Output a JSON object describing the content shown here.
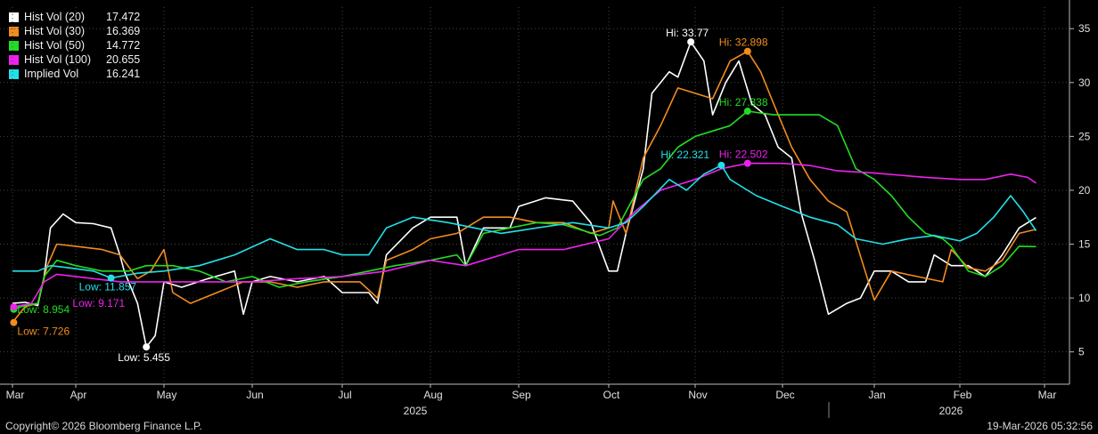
{
  "chart_data": {
    "type": "line",
    "y_ticks": [
      5,
      10,
      15,
      20,
      25,
      30,
      35
    ],
    "ylim": [
      2,
      37
    ],
    "x_month_labels": [
      "Mar",
      "Apr",
      "May",
      "Jun",
      "Jul",
      "Aug",
      "Sep",
      "Oct",
      "Nov",
      "Dec",
      "Jan",
      "Feb",
      "Mar"
    ],
    "year_labels": [
      "2025",
      "2026"
    ],
    "grid": true,
    "series": [
      {
        "name": "Hist Vol (20)",
        "color": "#ffffff",
        "last": "17.472",
        "hi": {
          "label": "Hi: 33.77",
          "value": 33.77,
          "x": 7.95
        },
        "low": {
          "label": "Low: 5.455",
          "value": 5.455,
          "x": 1.8
        },
        "points": [
          [
            0,
            9.5
          ],
          [
            0.2,
            9.6
          ],
          [
            0.4,
            9.3
          ],
          [
            0.5,
            12
          ],
          [
            0.6,
            16.5
          ],
          [
            0.8,
            17.8
          ],
          [
            1.0,
            17.0
          ],
          [
            1.2,
            16.9
          ],
          [
            1.4,
            16.5
          ],
          [
            1.5,
            14
          ],
          [
            1.55,
            12.5
          ],
          [
            1.7,
            9.5
          ],
          [
            1.8,
            5.455
          ],
          [
            1.9,
            6.5
          ],
          [
            2.0,
            11.5
          ],
          [
            2.2,
            11.0
          ],
          [
            2.5,
            11.8
          ],
          [
            2.8,
            12.5
          ],
          [
            2.9,
            8.5
          ],
          [
            3.0,
            11.5
          ],
          [
            3.2,
            12
          ],
          [
            3.5,
            11.5
          ],
          [
            3.8,
            12
          ],
          [
            4.0,
            10.5
          ],
          [
            4.3,
            10.5
          ],
          [
            4.4,
            9.5
          ],
          [
            4.5,
            14
          ],
          [
            4.8,
            16.5
          ],
          [
            5.0,
            17.5
          ],
          [
            5.3,
            17.5
          ],
          [
            5.4,
            13
          ],
          [
            5.6,
            16.5
          ],
          [
            5.9,
            16.5
          ],
          [
            6.0,
            18.5
          ],
          [
            6.3,
            19.3
          ],
          [
            6.6,
            19
          ],
          [
            6.8,
            17
          ],
          [
            7.0,
            12.5
          ],
          [
            7.1,
            12.5
          ],
          [
            7.2,
            16
          ],
          [
            7.4,
            22
          ],
          [
            7.5,
            29
          ],
          [
            7.7,
            31
          ],
          [
            7.8,
            30.5
          ],
          [
            7.95,
            33.77
          ],
          [
            8.1,
            32
          ],
          [
            8.2,
            27
          ],
          [
            8.35,
            30
          ],
          [
            8.5,
            32
          ],
          [
            8.65,
            28
          ],
          [
            8.8,
            27
          ],
          [
            8.95,
            24
          ],
          [
            9.1,
            23
          ],
          [
            9.2,
            18
          ],
          [
            9.35,
            13.5
          ],
          [
            9.5,
            8.5
          ],
          [
            9.7,
            9.5
          ],
          [
            9.85,
            10
          ],
          [
            10.0,
            12.5
          ],
          [
            10.2,
            12.5
          ],
          [
            10.4,
            11.5
          ],
          [
            10.6,
            11.5
          ],
          [
            10.7,
            14
          ],
          [
            10.9,
            13
          ],
          [
            11.1,
            13
          ],
          [
            11.3,
            12
          ],
          [
            11.5,
            14
          ],
          [
            11.7,
            16.5
          ],
          [
            11.9,
            17.47
          ]
        ]
      },
      {
        "name": "Hist Vol (30)",
        "color": "#f28c1e",
        "last": "16.369",
        "hi": {
          "label": "Hi: 32.898",
          "value": 32.898,
          "x": 8.6
        },
        "low": {
          "label": "Low: 7.726",
          "value": 7.726,
          "x": 0.02
        },
        "points": [
          [
            0,
            7.726
          ],
          [
            0.2,
            9.2
          ],
          [
            0.4,
            9.5
          ],
          [
            0.55,
            13
          ],
          [
            0.7,
            15
          ],
          [
            1.0,
            14.8
          ],
          [
            1.3,
            14.5
          ],
          [
            1.5,
            14
          ],
          [
            1.7,
            11.8
          ],
          [
            1.85,
            12.5
          ],
          [
            2.0,
            14.5
          ],
          [
            2.1,
            10.5
          ],
          [
            2.3,
            9.5
          ],
          [
            2.6,
            10.5
          ],
          [
            2.9,
            11.5
          ],
          [
            3.2,
            11.5
          ],
          [
            3.5,
            11
          ],
          [
            3.8,
            11.5
          ],
          [
            4.2,
            11.5
          ],
          [
            4.4,
            10
          ],
          [
            4.5,
            13.5
          ],
          [
            4.8,
            14.5
          ],
          [
            5.0,
            15.5
          ],
          [
            5.3,
            16
          ],
          [
            5.6,
            17.5
          ],
          [
            5.9,
            17.5
          ],
          [
            6.2,
            17
          ],
          [
            6.5,
            17
          ],
          [
            6.8,
            16
          ],
          [
            7.0,
            16.5
          ],
          [
            7.05,
            19
          ],
          [
            7.2,
            16
          ],
          [
            7.4,
            23
          ],
          [
            7.6,
            26
          ],
          [
            7.8,
            29.5
          ],
          [
            8.0,
            29
          ],
          [
            8.2,
            28.5
          ],
          [
            8.4,
            32
          ],
          [
            8.6,
            32.898
          ],
          [
            8.75,
            31
          ],
          [
            8.9,
            28
          ],
          [
            9.1,
            24
          ],
          [
            9.3,
            21
          ],
          [
            9.5,
            19
          ],
          [
            9.7,
            18
          ],
          [
            9.9,
            12.5
          ],
          [
            10.0,
            9.8
          ],
          [
            10.2,
            12.5
          ],
          [
            10.5,
            12
          ],
          [
            10.8,
            11.5
          ],
          [
            10.9,
            14.5
          ],
          [
            11.1,
            12.8
          ],
          [
            11.3,
            12.5
          ],
          [
            11.5,
            13.5
          ],
          [
            11.7,
            16
          ],
          [
            11.9,
            16.37
          ]
        ]
      },
      {
        "name": "Hist Vol (50)",
        "color": "#22dd22",
        "last": "14.772",
        "hi": {
          "label": "Hi: 27.338",
          "value": 27.338,
          "x": 8.6
        },
        "low": {
          "label": "Low: 8.954",
          "value": 8.954,
          "x": 0.02
        },
        "points": [
          [
            0,
            8.954
          ],
          [
            0.2,
            9.3
          ],
          [
            0.4,
            9.5
          ],
          [
            0.5,
            12
          ],
          [
            0.7,
            13.5
          ],
          [
            1.0,
            13
          ],
          [
            1.3,
            12.5
          ],
          [
            1.6,
            12.5
          ],
          [
            1.8,
            13
          ],
          [
            2.1,
            13
          ],
          [
            2.4,
            12.5
          ],
          [
            2.7,
            11.5
          ],
          [
            3.0,
            12
          ],
          [
            3.3,
            11
          ],
          [
            3.6,
            11.5
          ],
          [
            4.0,
            12
          ],
          [
            4.3,
            12.5
          ],
          [
            4.6,
            13
          ],
          [
            5.0,
            13.5
          ],
          [
            5.3,
            14
          ],
          [
            5.4,
            13
          ],
          [
            5.6,
            16
          ],
          [
            5.9,
            16.5
          ],
          [
            6.2,
            17
          ],
          [
            6.5,
            16.8
          ],
          [
            6.9,
            15.8
          ],
          [
            7.1,
            16.5
          ],
          [
            7.4,
            21
          ],
          [
            7.6,
            22
          ],
          [
            7.8,
            24
          ],
          [
            8.0,
            25
          ],
          [
            8.2,
            25.5
          ],
          [
            8.4,
            26
          ],
          [
            8.6,
            27.338
          ],
          [
            8.9,
            27
          ],
          [
            9.2,
            27
          ],
          [
            9.4,
            27
          ],
          [
            9.6,
            26
          ],
          [
            9.8,
            22
          ],
          [
            10.0,
            21
          ],
          [
            10.2,
            19.5
          ],
          [
            10.4,
            17.5
          ],
          [
            10.6,
            16
          ],
          [
            10.8,
            15.5
          ],
          [
            10.9,
            14.8
          ],
          [
            11.1,
            12.5
          ],
          [
            11.3,
            12
          ],
          [
            11.5,
            13
          ],
          [
            11.7,
            14.8
          ],
          [
            11.9,
            14.77
          ]
        ]
      },
      {
        "name": "Hist Vol (100)",
        "color": "#ee22ee",
        "last": "20.655",
        "hi": {
          "label": "Hi: 22.502",
          "value": 22.502,
          "x": 8.6
        },
        "low": {
          "label": "Low: 9.171",
          "value": 9.171,
          "x": 0.02
        },
        "points": [
          [
            0,
            9.171
          ],
          [
            0.3,
            9.5
          ],
          [
            0.5,
            11.5
          ],
          [
            0.7,
            12.2
          ],
          [
            1.0,
            12.0
          ],
          [
            1.5,
            11.5
          ],
          [
            2.0,
            11.5
          ],
          [
            2.5,
            11.5
          ],
          [
            3.0,
            11.5
          ],
          [
            3.5,
            11.8
          ],
          [
            4.0,
            12
          ],
          [
            4.5,
            12.5
          ],
          [
            5.0,
            13.5
          ],
          [
            5.4,
            13.0
          ],
          [
            5.6,
            13.5
          ],
          [
            6.0,
            14.5
          ],
          [
            6.5,
            14.5
          ],
          [
            7.0,
            15.5
          ],
          [
            7.3,
            18
          ],
          [
            7.6,
            20
          ],
          [
            8.0,
            21
          ],
          [
            8.3,
            22
          ],
          [
            8.6,
            22.502
          ],
          [
            9.0,
            22.5
          ],
          [
            9.3,
            22.3
          ],
          [
            9.6,
            21.8
          ],
          [
            10.0,
            21.6
          ],
          [
            10.3,
            21.4
          ],
          [
            10.6,
            21.2
          ],
          [
            11.0,
            21
          ],
          [
            11.3,
            21
          ],
          [
            11.6,
            21.5
          ],
          [
            11.8,
            21.2
          ],
          [
            11.9,
            20.66
          ]
        ]
      },
      {
        "name": "Implied Vol",
        "color": "#22e0e8",
        "last": "16.241",
        "hi": {
          "label": "Hi: 22.321",
          "value": 22.321,
          "x": 8.3
        },
        "low": {
          "label": "Low: 11.857",
          "value": 11.857,
          "x": 1.4
        },
        "points": [
          [
            0,
            12.5
          ],
          [
            0.4,
            12.5
          ],
          [
            0.6,
            13
          ],
          [
            0.9,
            12.8
          ],
          [
            1.2,
            12.5
          ],
          [
            1.4,
            11.857
          ],
          [
            1.7,
            12.3
          ],
          [
            2.0,
            12.5
          ],
          [
            2.4,
            13
          ],
          [
            2.8,
            14
          ],
          [
            3.2,
            15.5
          ],
          [
            3.5,
            14.5
          ],
          [
            3.8,
            14.5
          ],
          [
            4.0,
            14
          ],
          [
            4.3,
            14
          ],
          [
            4.5,
            16.5
          ],
          [
            4.8,
            17.5
          ],
          [
            5.2,
            17
          ],
          [
            5.5,
            16.5
          ],
          [
            5.8,
            16
          ],
          [
            6.2,
            16.5
          ],
          [
            6.6,
            17
          ],
          [
            7.0,
            16.5
          ],
          [
            7.2,
            17
          ],
          [
            7.4,
            18.5
          ],
          [
            7.7,
            21
          ],
          [
            7.9,
            20
          ],
          [
            8.1,
            21.5
          ],
          [
            8.3,
            22.321
          ],
          [
            8.4,
            21
          ],
          [
            8.7,
            19.5
          ],
          [
            9.0,
            18.5
          ],
          [
            9.3,
            17.5
          ],
          [
            9.6,
            16.8
          ],
          [
            9.8,
            15.5
          ],
          [
            10.1,
            15
          ],
          [
            10.4,
            15.5
          ],
          [
            10.7,
            15.8
          ],
          [
            11.0,
            15.3
          ],
          [
            11.2,
            16
          ],
          [
            11.4,
            17.5
          ],
          [
            11.6,
            19.5
          ],
          [
            11.75,
            18
          ],
          [
            11.9,
            16.24
          ]
        ]
      }
    ]
  },
  "footer": {
    "copyright": "Copyright© 2026 Bloomberg Finance L.P.",
    "timestamp": "19-Mar-2026 05:32:56"
  }
}
